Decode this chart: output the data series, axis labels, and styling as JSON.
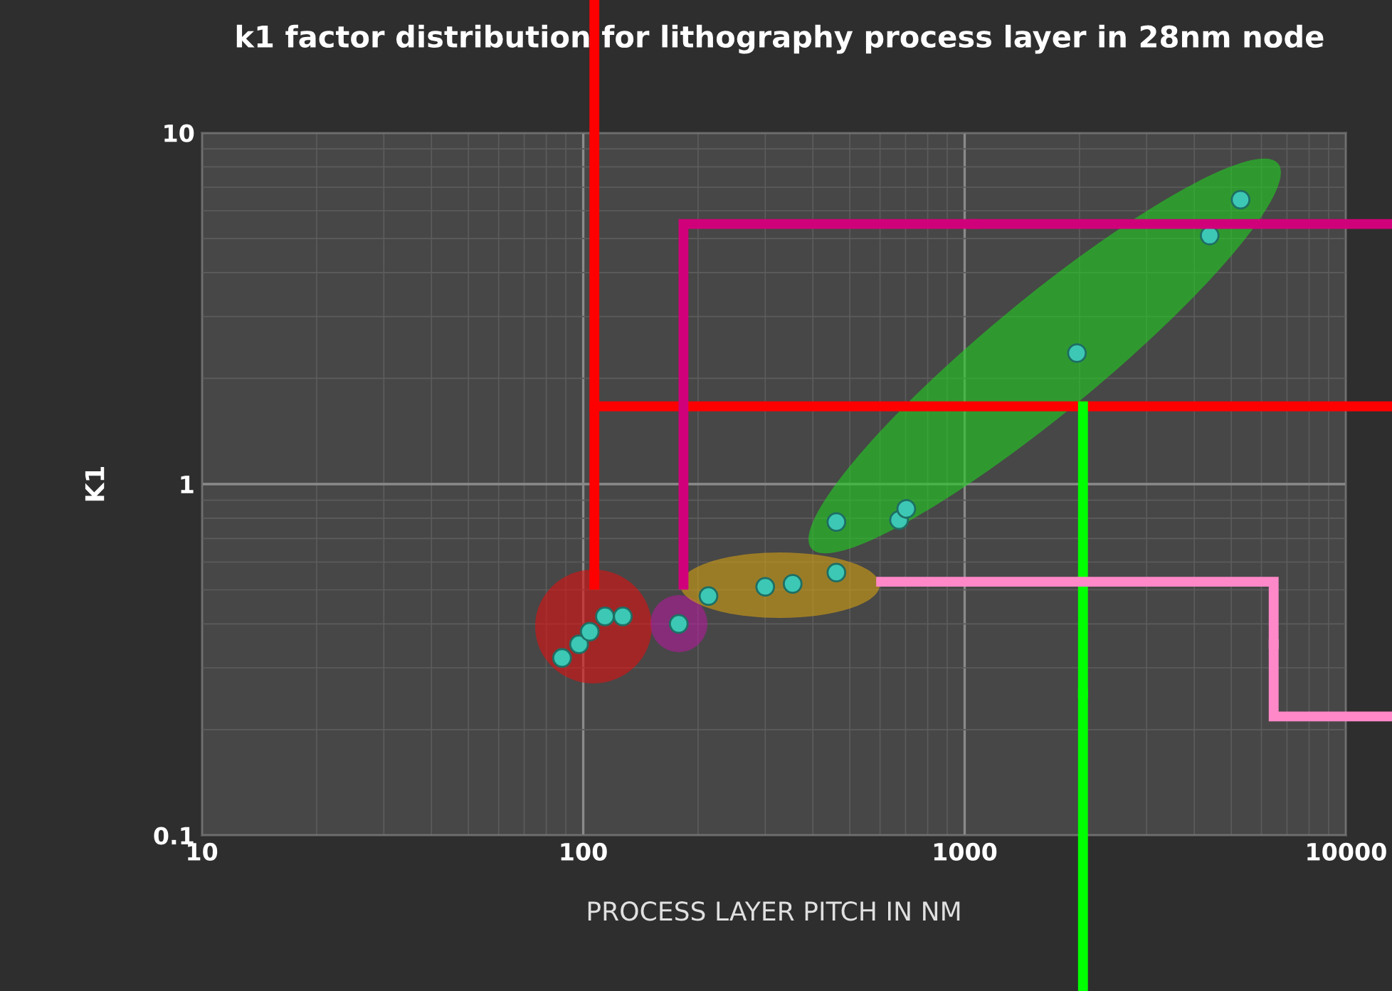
{
  "chart_data": {
    "type": "scatter",
    "title": "k1 factor distribution for lithography process layer in 28nm node",
    "xlabel": "PROCESS LAYER PITCH IN NM",
    "ylabel": "K1",
    "x": [
      88,
      97.5,
      104,
      114,
      127,
      178,
      213,
      300,
      354,
      461,
      461,
      673,
      703,
      1970,
      4390,
      5290
    ],
    "values": [
      0.32,
      0.35,
      0.38,
      0.42,
      0.42,
      0.4,
      0.48,
      0.51,
      0.52,
      0.56,
      0.78,
      0.79,
      0.85,
      2.36,
      5.1,
      6.45
    ],
    "color": "#3cc8b4",
    "marker": "circle",
    "log": "xy",
    "grid": true,
    "xlim": [
      10,
      10000
    ],
    "xticks": [
      10,
      100,
      1000,
      10000
    ],
    "ylim": [
      0.1,
      10
    ],
    "yticks": [
      0.1,
      1,
      10
    ]
  }
}
